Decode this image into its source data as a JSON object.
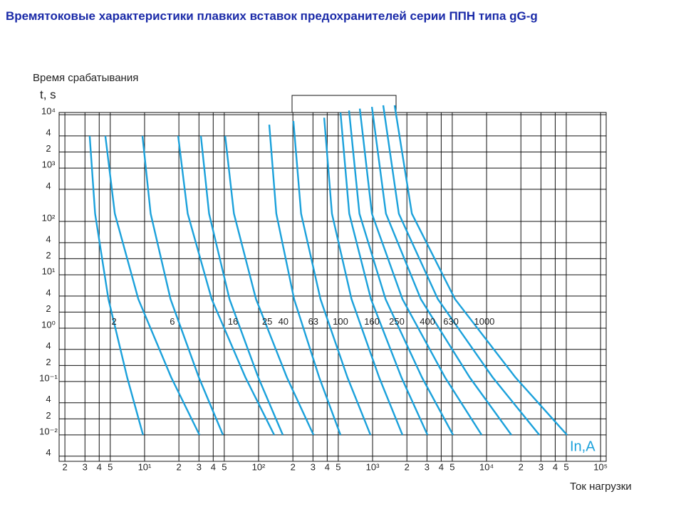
{
  "chart_data": {
    "type": "line",
    "title": "Времятоковые характеристики плавких вставок предохранителей серии ППН типа gG-g",
    "y_axis_label": "Время срабатывания",
    "y_axis_unit": "t, s",
    "x_axis_label": "Ток нагрузки",
    "x_axis_unit": "In,A",
    "log_x": true,
    "log_y": true,
    "grid": true,
    "color": "#1ba1db",
    "xlim": [
      1.78,
      112000
    ],
    "ylim": [
      0.0032,
      11000
    ],
    "xticks": [
      2,
      3,
      4,
      5,
      {
        "value": 10,
        "label": "10¹"
      },
      {
        "value": 20,
        "label": "2"
      },
      {
        "value": 30,
        "label": "3"
      },
      {
        "value": 40,
        "label": "4"
      },
      {
        "value": 50,
        "label": "5"
      },
      {
        "value": 100,
        "label": "10²"
      },
      {
        "value": 200,
        "label": "2"
      },
      {
        "value": 300,
        "label": "3"
      },
      {
        "value": 400,
        "label": "4"
      },
      {
        "value": 500,
        "label": "5"
      },
      {
        "value": 1000,
        "label": "10³"
      },
      {
        "value": 2000,
        "label": "2"
      },
      {
        "value": 3000,
        "label": "3"
      },
      {
        "value": 4000,
        "label": "4"
      },
      {
        "value": 5000,
        "label": "5"
      },
      {
        "value": 10000,
        "label": "10⁴"
      },
      {
        "value": 20000,
        "label": "2"
      },
      {
        "value": 30000,
        "label": "3"
      },
      {
        "value": 40000,
        "label": "4"
      },
      {
        "value": 50000,
        "label": "5"
      },
      {
        "value": 100000,
        "label": "10⁵"
      }
    ],
    "yticks": [
      {
        "value": 10000,
        "label": "10⁴"
      },
      {
        "value": 4000,
        "label": "4"
      },
      {
        "value": 2000,
        "label": "2"
      },
      {
        "value": 1000,
        "label": "10³"
      },
      {
        "value": 400,
        "label": "4"
      },
      {
        "value": 100,
        "label": "10²"
      },
      {
        "value": 40,
        "label": "4"
      },
      {
        "value": 20,
        "label": "2"
      },
      {
        "value": 10,
        "label": "10¹"
      },
      4,
      2,
      {
        "value": 1,
        "label": "10⁰"
      },
      {
        "value": 0.4,
        "label": "4"
      },
      {
        "value": 0.2,
        "label": "2"
      },
      {
        "value": 0.1,
        "label": "10⁻¹"
      },
      {
        "value": 0.04,
        "label": "4"
      },
      {
        "value": 0.02,
        "label": "2"
      },
      {
        "value": 0.01,
        "label": "10⁻²"
      },
      {
        "value": 0.004,
        "label": "4"
      }
    ],
    "series": [
      {
        "x": [
          3.3,
          3.68,
          4.82,
          7.03,
          9.7
        ],
        "values": [
          4000,
          140,
          3.5,
          0.12,
          0.01
        ]
      },
      {
        "x": [
          4.53,
          5.48,
          8.81,
          17.1,
          30.3
        ],
        "values": [
          4000,
          140,
          3.5,
          0.12,
          0.01
        ]
      },
      {
        "x": [
          9.58,
          11.3,
          16.9,
          29.9,
          48.7
        ],
        "values": [
          4000,
          140,
          3.5,
          0.12,
          0.01
        ]
      },
      {
        "x": [
          19.7,
          23.9,
          38.8,
          76.6,
          137
        ],
        "values": [
          4000,
          140,
          3.5,
          0.12,
          0.01
        ]
      },
      {
        "x": [
          31.2,
          36.8,
          55.6,
          99.3,
          163
        ],
        "values": [
          4000,
          140,
          3.5,
          0.12,
          0.01
        ]
      },
      {
        "x": [
          50.9,
          60.8,
          95,
          177,
          303
        ],
        "values": [
          4000,
          140,
          3.5,
          0.12,
          0.01
        ]
      },
      {
        "x": [
          124,
          143,
          205,
          340,
          523
        ],
        "values": [
          6500,
          140,
          3.5,
          0.12,
          0.01
        ]
      },
      {
        "x": [
          202,
          236,
          349,
          601,
          958
        ],
        "values": [
          7600,
          140,
          3.5,
          0.12,
          0.01
        ]
      },
      {
        "x": [
          376,
          440,
          654,
          1140,
          1830
        ],
        "values": [
          8800,
          140,
          3.5,
          0.12,
          0.01
        ]
      },
      {
        "x": [
          523,
          624,
          968,
          1790,
          3030
        ],
        "values": [
          11000,
          140,
          3.5,
          0.12,
          0.01
        ]
      },
      {
        "x": [
          622,
          767,
          1300,
          2710,
          5080
        ],
        "values": [
          12000,
          140,
          3.5,
          0.12,
          0.01
        ]
      },
      {
        "x": [
          772,
          987,
          1830,
          4320,
          9040
        ],
        "values": [
          13000,
          140,
          3.5,
          0.12,
          0.01
        ]
      },
      {
        "x": [
          986,
          1310,
          2650,
          7100,
          16500
        ],
        "values": [
          14000,
          140,
          3.5,
          0.12,
          0.01
        ]
      },
      {
        "x": [
          1240,
          1700,
          3740,
          11300,
          29000
        ],
        "values": [
          15000,
          140,
          3.5,
          0.12,
          0.01
        ]
      },
      {
        "x": [
          1560,
          2210,
          5290,
          17900,
          50800
        ],
        "values": [
          15000,
          140,
          3.5,
          0.12,
          0.01
        ]
      }
    ],
    "annotations": [
      {
        "text": "2",
        "x": 5.4,
        "y": 1.3
      },
      {
        "text": "6",
        "x": 17.5,
        "y": 1.3
      },
      {
        "text": "16",
        "x": 59.6,
        "y": 1.3
      },
      {
        "text": "25",
        "x": 119,
        "y": 1.3
      },
      {
        "text": "40",
        "x": 165,
        "y": 1.3
      },
      {
        "text": "63",
        "x": 302,
        "y": 1.3
      },
      {
        "text": "100",
        "x": 523,
        "y": 1.3
      },
      {
        "text": "160",
        "x": 986,
        "y": 1.3
      },
      {
        "text": "250",
        "x": 1630,
        "y": 1.3
      },
      {
        "text": "400",
        "x": 3030,
        "y": 1.3
      },
      {
        "text": "630",
        "x": 4870,
        "y": 1.3
      },
      {
        "text": "1000",
        "x": 9560,
        "y": 1.3
      }
    ]
  }
}
